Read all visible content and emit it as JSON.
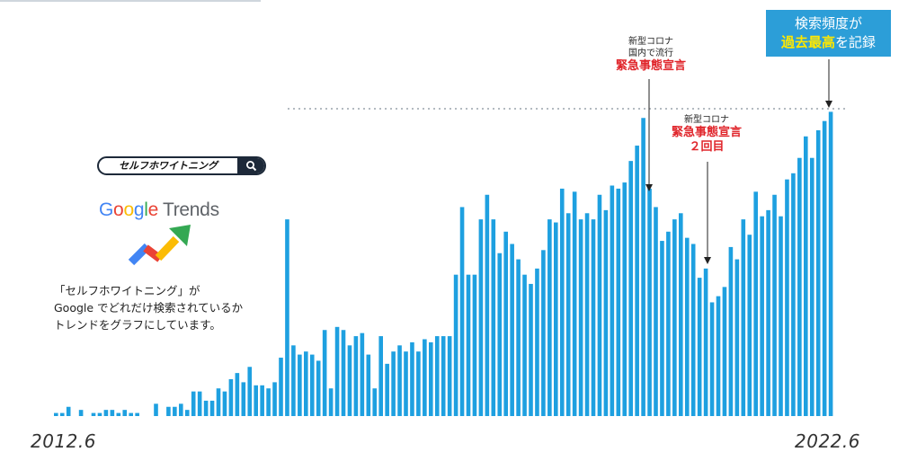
{
  "description_text": "「セルフホワイトニング」が\nGoogle でどれだけ検索されているか\nトレンドをグラフにしています。",
  "search_box": {
    "query": "セルフホワイトニング"
  },
  "logo": {
    "google": "Google",
    "trends": "Trends"
  },
  "date_start": "2012.6",
  "date_end": "2022.6",
  "callout": {
    "line1": "検索頻度が",
    "highlight": "過去最高",
    "line2_rest": "を記録"
  },
  "annotation_1": {
    "line1": "新型コロナ",
    "line2": "国内で流行",
    "emphasis": "緊急事態宣言"
  },
  "annotation_2": {
    "line1": "新型コロナ",
    "emphasis1": "緊急事態宣言",
    "emphasis2": "２回目"
  },
  "colors": {
    "bar": "#1ea0e0",
    "callout_bg": "#2c9ed8",
    "highlight": "#ffe800",
    "alert_red": "#e0252b",
    "dark": "#1d2939"
  },
  "chart_data": {
    "type": "bar",
    "x_range": [
      "2012.6",
      "2022.6"
    ],
    "ylim": [
      0,
      100
    ],
    "reference_line": 100,
    "values": [
      1,
      1,
      3,
      0,
      2,
      0,
      1,
      1,
      2,
      2,
      1,
      2,
      1,
      1,
      0,
      0,
      4,
      0,
      3,
      3,
      4,
      2,
      8,
      8,
      5,
      5,
      9,
      8,
      12,
      14,
      11,
      16,
      10,
      10,
      9,
      11,
      19,
      64,
      23,
      20,
      21,
      20,
      18,
      28,
      9,
      29,
      28,
      23,
      26,
      27,
      20,
      9,
      26,
      17,
      21,
      23,
      21,
      24,
      21,
      25,
      24,
      26,
      26,
      26,
      46,
      68,
      46,
      46,
      64,
      72,
      64,
      53,
      60,
      56,
      51,
      46,
      43,
      48,
      54,
      64,
      63,
      74,
      66,
      73,
      64,
      66,
      64,
      72,
      67,
      75,
      74,
      76,
      83,
      88,
      97,
      74,
      68,
      57,
      60,
      64,
      66,
      58,
      56,
      45,
      48,
      37,
      39,
      42,
      55,
      51,
      64,
      59,
      73,
      65,
      67,
      72,
      65,
      77,
      79,
      84,
      91,
      84,
      93,
      96,
      99
    ]
  }
}
